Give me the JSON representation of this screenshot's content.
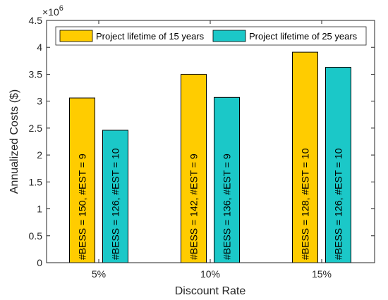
{
  "chart_data": {
    "type": "bar",
    "categories": [
      "5%",
      "10%",
      "15%"
    ],
    "xlabel": "Discount Rate",
    "ylabel": "Annualized Costs ($)",
    "y_multiplier_base": "×10",
    "y_multiplier_exp": "6",
    "ylim": [
      0,
      4.5
    ],
    "yticks": [
      "0",
      "0.5",
      "1",
      "1.5",
      "2",
      "2.5",
      "3",
      "3.5",
      "4",
      "4.5"
    ],
    "grid": false,
    "legend_position": "top",
    "series": [
      {
        "name": "Project lifetime of 15 years",
        "color": "#FFCC00",
        "values": [
          3.06,
          3.5,
          3.91
        ],
        "annotations": [
          "#BESS = 150, #EST = 9",
          "#BESS = 142, #EST = 9",
          "#BESS = 128, #EST = 10"
        ]
      },
      {
        "name": "Project lifetime of 25 years",
        "color": "#1BC8C8",
        "values": [
          2.46,
          3.07,
          3.63
        ],
        "annotations": [
          "#BESS = 126, #EST = 10",
          "#BESS = 136, #EST = 9",
          "#BESS = 126, #EST = 10"
        ]
      }
    ]
  }
}
